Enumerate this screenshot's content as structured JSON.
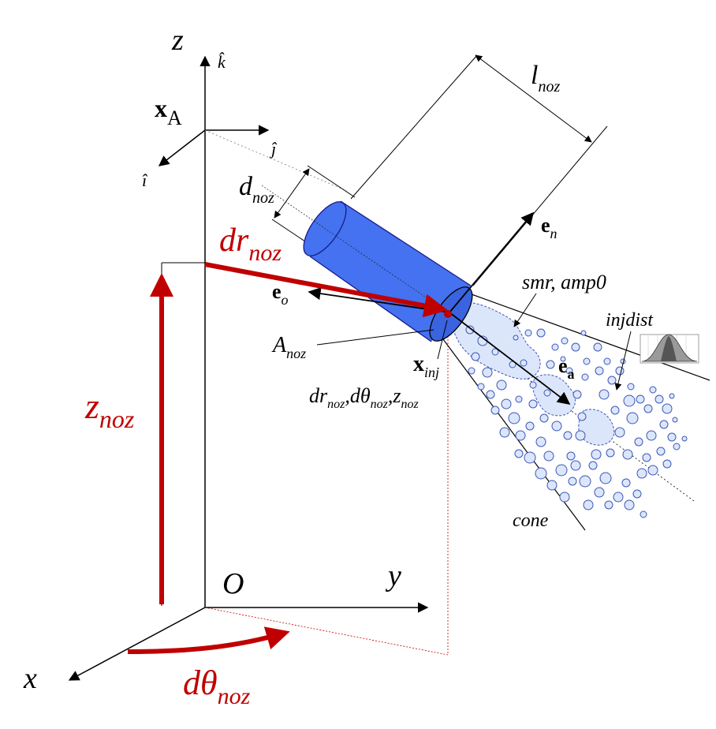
{
  "labels": {
    "z_axis": "z",
    "y_axis": "y",
    "x_axis": "x",
    "origin": "O",
    "k_hat": "k̂",
    "j_hat": "ĵ",
    "i_hat": "î",
    "xA_main": "x",
    "xA_sub": "A",
    "l_main": "l",
    "l_sub": "noz",
    "d_main": "d",
    "d_sub": "noz",
    "dr_main": "dr",
    "dr_sub": "noz",
    "z_main": "z",
    "z_sub": "noz",
    "eo_main": "e",
    "eo_sub": "o",
    "en_main": "e",
    "en_sub": "n",
    "ea_main": "e",
    "ea_sub": "a",
    "A_main": "A",
    "A_sub": "noz",
    "xinj_main": "x",
    "xinj_sub": "inj",
    "params_dr": "dr",
    "params_dtheta": "dθ",
    "params_z": "z",
    "params_sub": "noz",
    "params_comma": ",",
    "smr_amp": "smr, amp0",
    "injdist": "injdist",
    "cone": "cone",
    "dtheta_main": "dθ",
    "dtheta_sub": "noz"
  },
  "colors": {
    "red": "#c00000",
    "nozzle": "#4472f0",
    "nozzle_edge": "#1a1a8a",
    "spray": "#dce6fb",
    "droplet_fill": "#dce6fb",
    "droplet_edge": "#3b57b8"
  }
}
